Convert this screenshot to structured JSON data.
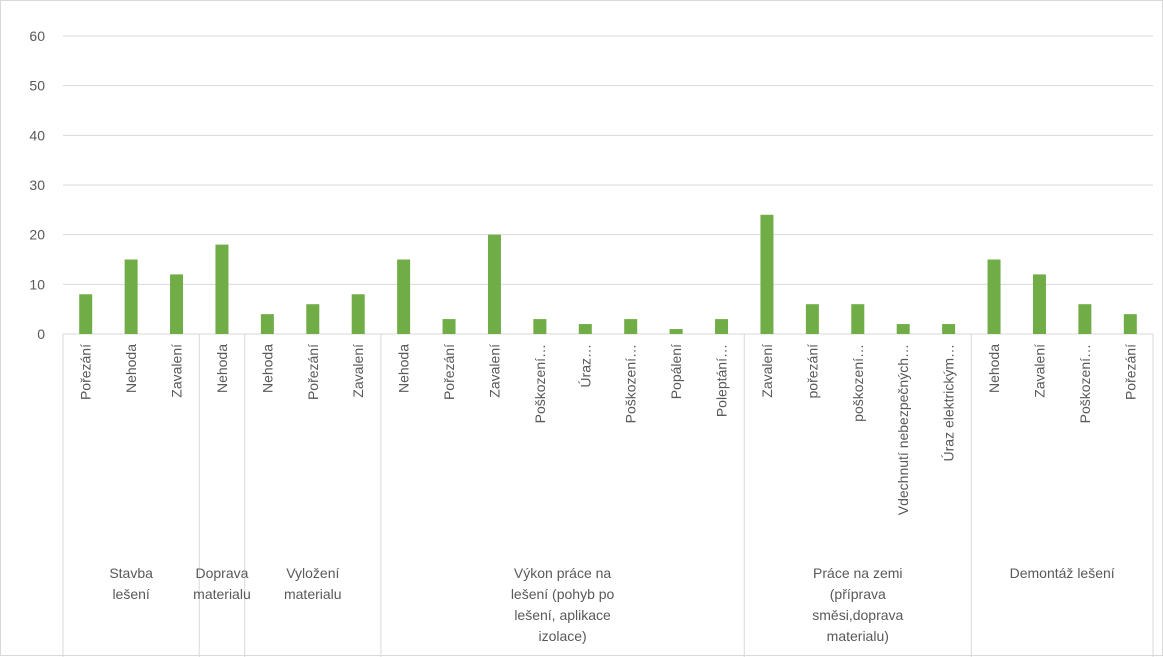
{
  "chart_data": {
    "type": "bar",
    "title": "",
    "xlabel": "",
    "ylabel": "",
    "ylim": [
      0,
      60
    ],
    "yticks": [
      0,
      10,
      20,
      30,
      40,
      50,
      60
    ],
    "grid": true,
    "legend": "none",
    "bar_color": "#70ad47",
    "groups": [
      {
        "label_lines": [
          "Stavba",
          "lešení"
        ],
        "start": 0,
        "count": 3
      },
      {
        "label_lines": [
          "Doprava",
          "materialu"
        ],
        "start": 3,
        "count": 1
      },
      {
        "label_lines": [
          "Vyložení",
          "materialu"
        ],
        "start": 4,
        "count": 3
      },
      {
        "label_lines": [
          "Výkon práce na",
          "lešení (pohyb po",
          "lešení, aplikace",
          "izolace)"
        ],
        "start": 7,
        "count": 8
      },
      {
        "label_lines": [
          "Práce na zemi",
          "(příprava",
          "směsi,doprava",
          "materialu)"
        ],
        "start": 15,
        "count": 5
      },
      {
        "label_lines": [
          "Demontáž lešení"
        ],
        "start": 20,
        "count": 4
      }
    ],
    "categories": [
      "Pořezání",
      "Nehoda",
      "Zavalení",
      "Nehoda",
      "Nehoda",
      "Pořezání",
      "Zavalení",
      "Nehoda",
      "Pořezání",
      "Zavalení",
      "Poškození…",
      "Úraz…",
      "Poškození…",
      "Popálení",
      "Poleptání…",
      "Zavalení",
      "pořezání",
      "poškození…",
      "Vdechnutí nebezpečných…",
      "Úraz elektrickým…",
      "Nehoda",
      "Zavalení",
      "Poškození…",
      "Pořezání"
    ],
    "values": [
      8,
      15,
      12,
      18,
      4,
      6,
      8,
      15,
      3,
      20,
      3,
      2,
      3,
      1,
      3,
      24,
      6,
      6,
      2,
      2,
      15,
      12,
      6,
      4
    ]
  }
}
